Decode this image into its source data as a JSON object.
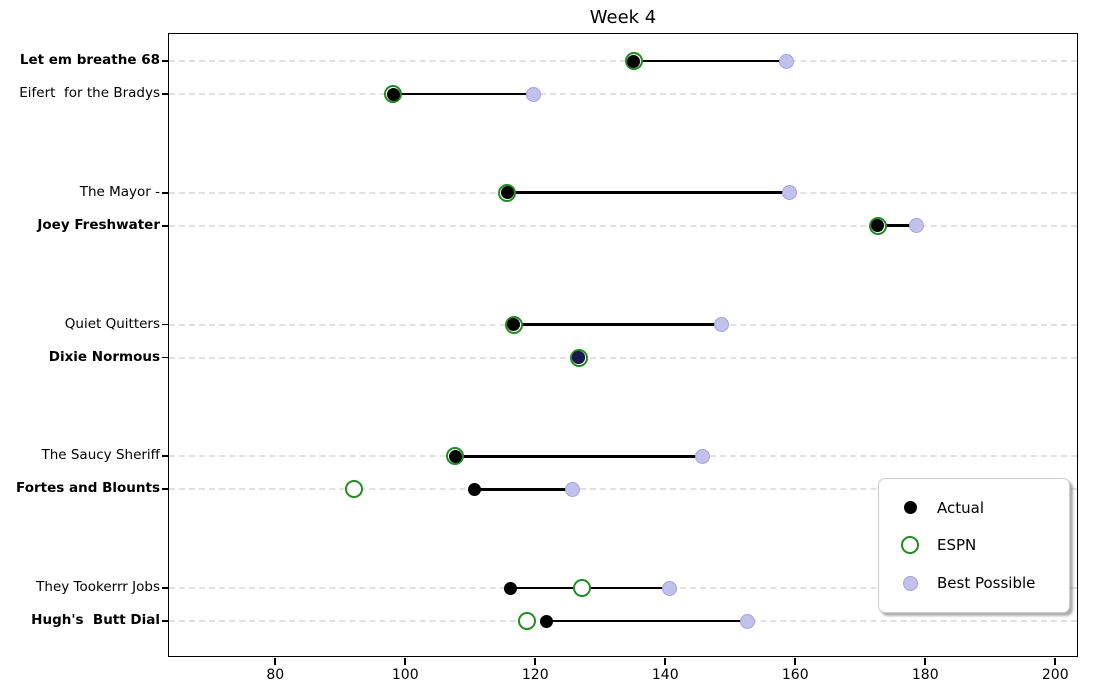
{
  "title": "Week 4",
  "legend": {
    "position": "lower right",
    "items": [
      {
        "label": "Actual",
        "marker": "black-filled-circle",
        "color": "#000000"
      },
      {
        "label": "ESPN",
        "marker": "green-open-circle",
        "color": "#228B22"
      },
      {
        "label": "Best Possible",
        "marker": "lavender-filled-circle",
        "color": "#c1c1ec"
      }
    ]
  },
  "chart_data": {
    "type": "scatter",
    "subtype": "dumbbell-dot-plot",
    "title": "Week 4",
    "xlabel": "",
    "ylabel": "",
    "xlim": [
      63.5,
      203.5
    ],
    "xticks": [
      80,
      100,
      120,
      140,
      160,
      180,
      200
    ],
    "grid": "horizontal-dashed",
    "legend_position": "lower right",
    "series_names": [
      "Actual",
      "ESPN",
      "Best Possible"
    ],
    "colors": {
      "actual": "#000000",
      "espn": "#228B22",
      "best": "#c1c1ec",
      "best_over_actual": "#191950"
    },
    "teams": [
      {
        "name": "Let em breathe 68",
        "bold": true,
        "actual": 135,
        "espn": 135,
        "best": 158.5
      },
      {
        "name": "Eifert  for the Bradys",
        "bold": false,
        "actual": 98,
        "espn": 98,
        "best": 119.5
      },
      {
        "name": "The Mayor -",
        "bold": false,
        "actual": 115.5,
        "espn": 115.5,
        "best": 159
      },
      {
        "name": "Joey Freshwater",
        "bold": true,
        "actual": 172.5,
        "espn": 172.5,
        "best": 178.5
      },
      {
        "name": "Quiet Quitters",
        "bold": false,
        "actual": 116.5,
        "espn": 116.5,
        "best": 148.5
      },
      {
        "name": "Dixie Normous",
        "bold": true,
        "actual": 126.5,
        "espn": 126.5,
        "best": 126.5
      },
      {
        "name": "The Saucy Sheriff",
        "bold": false,
        "actual": 107.5,
        "espn": 107.5,
        "best": 145.5
      },
      {
        "name": "Fortes and Blounts",
        "bold": true,
        "actual": 110.5,
        "espn": 92,
        "best": 125.5
      },
      {
        "name": "They Tookerrr Jobs",
        "bold": false,
        "actual": 116,
        "espn": 127,
        "best": 140.5
      },
      {
        "name": "Hugh's  Butt Dial",
        "bold": true,
        "actual": 121.5,
        "espn": 118.5,
        "best": 152.5
      }
    ]
  }
}
